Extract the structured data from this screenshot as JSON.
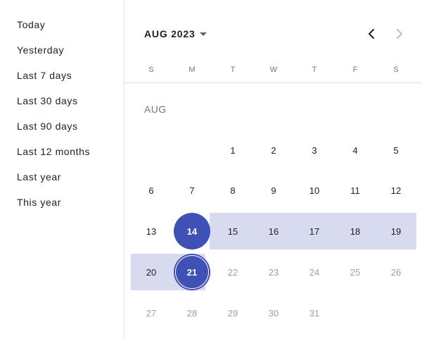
{
  "presets": [
    "Today",
    "Yesterday",
    "Last 7 days",
    "Last 30 days",
    "Last 90 days",
    "Last 12 months",
    "Last year",
    "This year"
  ],
  "calendar": {
    "month_selector": "AUG 2023",
    "month_label": "AUG",
    "weekdays": [
      "S",
      "M",
      "T",
      "W",
      "T",
      "F",
      "S"
    ],
    "weeks": [
      [
        "",
        "",
        "1",
        "2",
        "3",
        "4",
        "5"
      ],
      [
        "6",
        "7",
        "8",
        "9",
        "10",
        "11",
        "12"
      ],
      [
        "13",
        "14",
        "15",
        "16",
        "17",
        "18",
        "19"
      ],
      [
        "20",
        "21",
        "22",
        "23",
        "24",
        "25",
        "26"
      ],
      [
        "27",
        "28",
        "29",
        "30",
        "31",
        "",
        ""
      ]
    ],
    "range_start": "14",
    "range_end": "21",
    "colors": {
      "accent": "#3f51b5",
      "range": "#d8dbf0",
      "disabled_text": "#9e9e9e"
    },
    "icons": {
      "prev": "chevron-left-icon",
      "next": "chevron-right-icon",
      "dropdown": "caret-down-icon"
    }
  }
}
